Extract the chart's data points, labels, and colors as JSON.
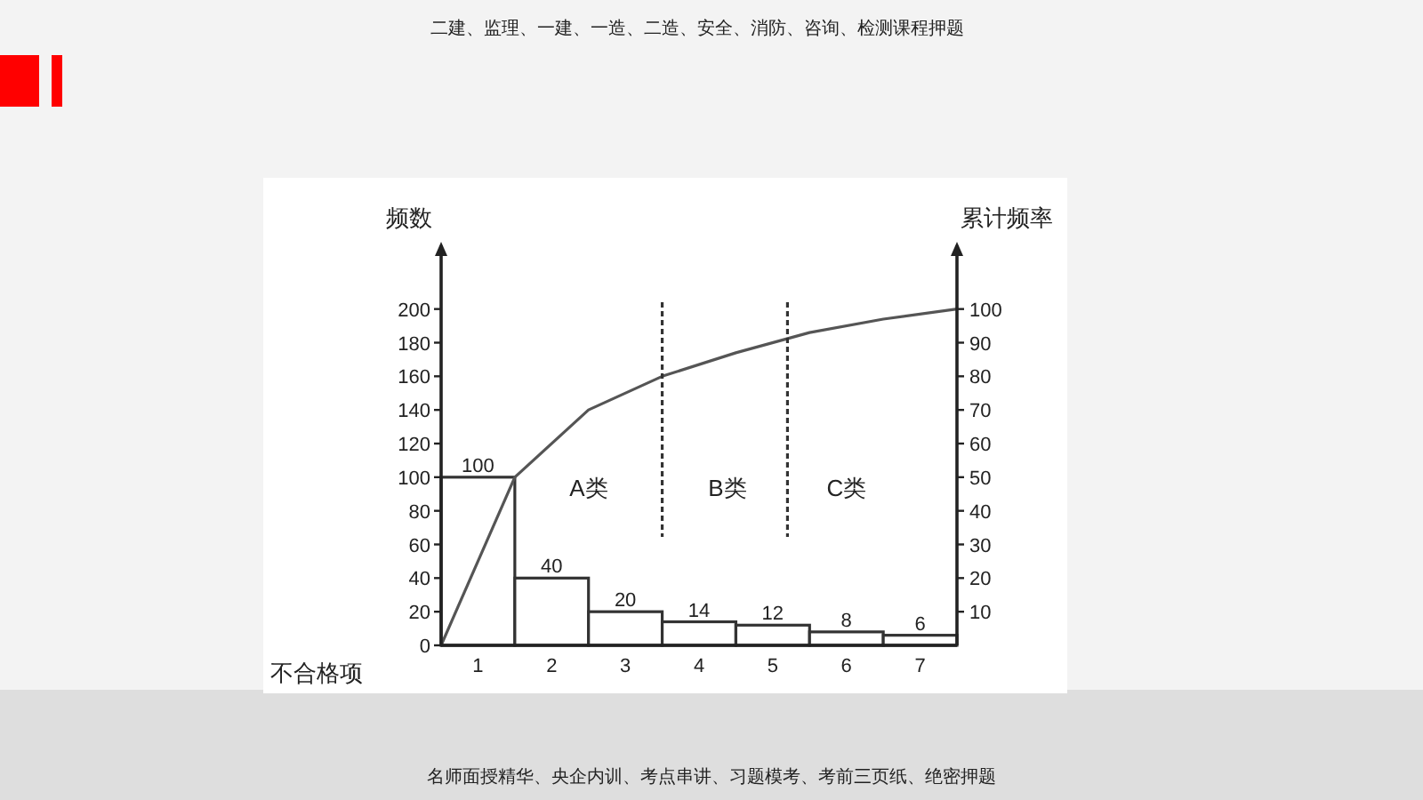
{
  "chart_data": {
    "type": "bar",
    "xlabel": "不合格项",
    "ylabel": "频数",
    "y2label": "累计频率",
    "x": [
      0.5,
      1.5,
      2.5,
      3.5,
      4.5,
      5.5,
      6.5
    ],
    "xlim": [
      0,
      7
    ],
    "xticks": [
      {
        "value": 0.5,
        "label": "1"
      },
      {
        "value": 1.5,
        "label": "2"
      },
      {
        "value": 2.5,
        "label": "3"
      },
      {
        "value": 3.5,
        "label": "4"
      },
      {
        "value": 4.5,
        "label": "5"
      },
      {
        "value": 5.5,
        "label": "6"
      },
      {
        "value": 6.5,
        "label": "7"
      }
    ],
    "ylim": [
      0,
      240
    ],
    "yticks": [
      0,
      20,
      40,
      60,
      80,
      100,
      120,
      140,
      160,
      180,
      200
    ],
    "y2lim": [
      0,
      120
    ],
    "y2ticks": [
      10,
      20,
      30,
      40,
      50,
      60,
      70,
      80,
      90,
      100
    ],
    "series": [
      {
        "color": "#ffffff",
        "values": [
          100,
          40,
          20,
          14,
          12,
          8,
          6
        ],
        "value_labels": [
          "100",
          "40",
          "20",
          "14",
          "12",
          "8",
          "6"
        ]
      },
      {
        "type": "line",
        "axis": "y2",
        "color": "#555555",
        "x": [
          0,
          1,
          2,
          3,
          4,
          5,
          6,
          7
        ],
        "values": [
          0,
          50,
          70,
          80,
          87,
          93,
          97,
          100
        ]
      }
    ],
    "ref_lines": [
      {
        "axis": "x",
        "value": 3,
        "line_style": "dashed"
      },
      {
        "axis": "x",
        "value": 4.7,
        "line_style": "dashed"
      }
    ],
    "annotations": [
      "A类",
      "B类",
      "C类",
      "二建、监理、一建、一造、二造、安全、消防、咨询、检测课程押题",
      "名师面授精华、央企内训、考点串讲、习题模考、考前三页纸、绝密押题"
    ]
  }
}
